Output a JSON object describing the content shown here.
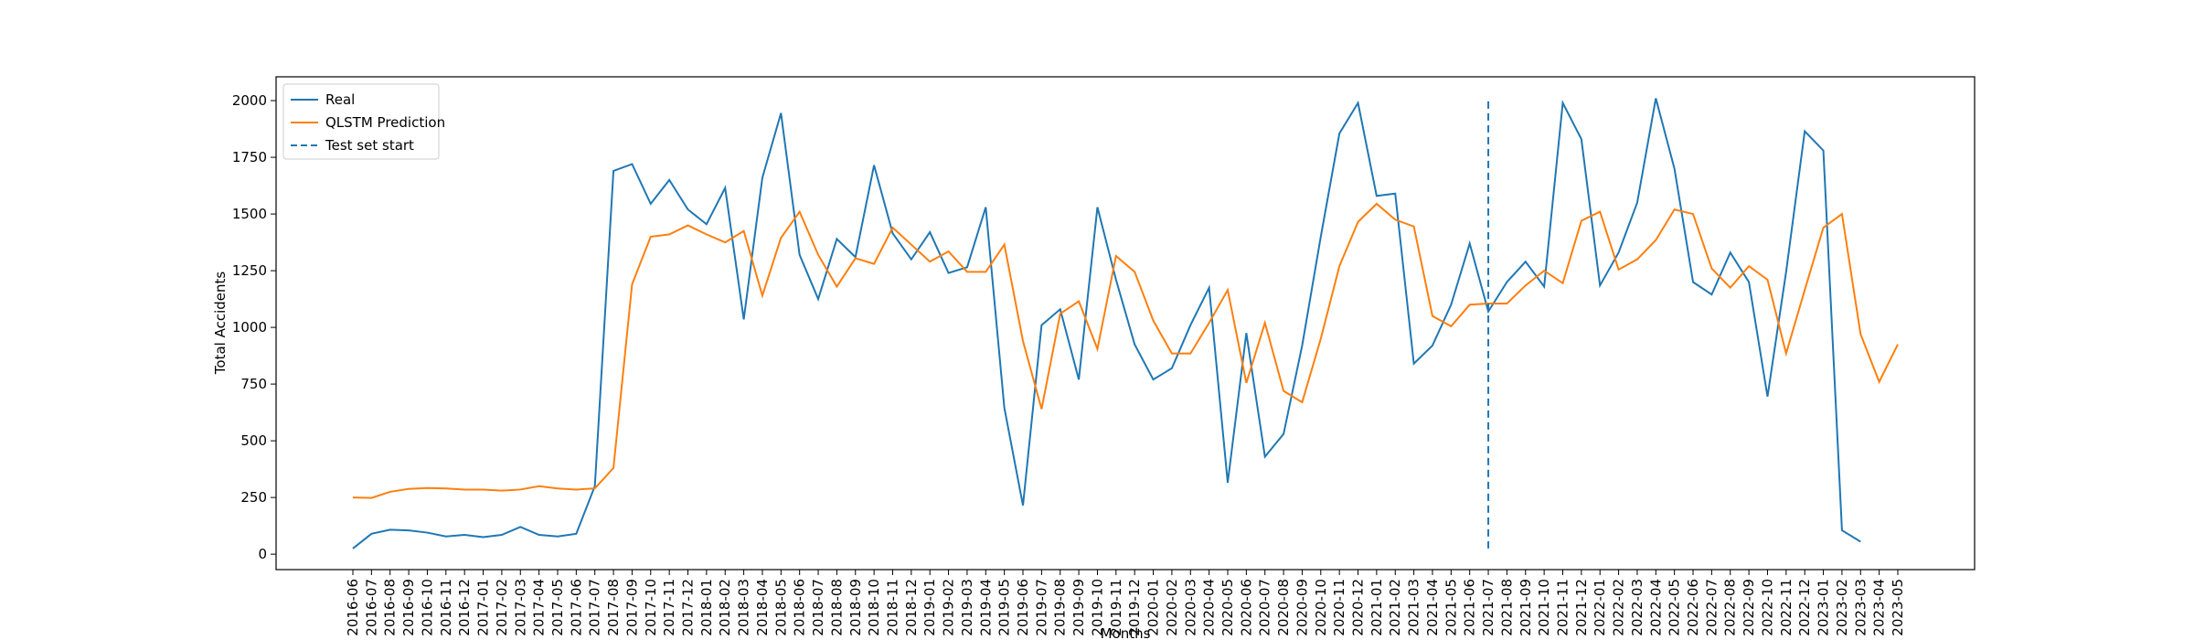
{
  "chart_data": {
    "type": "line",
    "xlabel": "Months",
    "ylabel": "Total Accidents",
    "x": [
      "2016-06",
      "2016-07",
      "2016-08",
      "2016-09",
      "2016-10",
      "2016-11",
      "2016-12",
      "2017-01",
      "2017-02",
      "2017-03",
      "2017-04",
      "2017-05",
      "2017-06",
      "2017-07",
      "2017-08",
      "2017-09",
      "2017-10",
      "2017-11",
      "2017-12",
      "2018-01",
      "2018-02",
      "2018-03",
      "2018-04",
      "2018-05",
      "2018-06",
      "2018-07",
      "2018-08",
      "2018-09",
      "2018-10",
      "2018-11",
      "2018-12",
      "2019-01",
      "2019-02",
      "2019-03",
      "2019-04",
      "2019-05",
      "2019-06",
      "2019-07",
      "2019-08",
      "2019-09",
      "2019-10",
      "2019-11",
      "2019-12",
      "2020-01",
      "2020-02",
      "2020-03",
      "2020-04",
      "2020-05",
      "2020-06",
      "2020-07",
      "2020-08",
      "2020-09",
      "2020-10",
      "2020-11",
      "2020-12",
      "2021-01",
      "2021-02",
      "2021-03",
      "2021-04",
      "2021-05",
      "2021-06",
      "2021-07",
      "2021-08",
      "2021-09",
      "2021-10",
      "2021-11",
      "2021-12",
      "2022-01",
      "2022-02",
      "2022-03",
      "2022-04",
      "2022-05",
      "2022-06",
      "2022-07",
      "2022-08",
      "2022-09",
      "2022-10",
      "2022-11",
      "2022-12",
      "2023-01",
      "2023-02",
      "2023-03",
      "2023-04",
      "2023-05"
    ],
    "series": [
      {
        "name": "Real",
        "color": "#1f77b4",
        "values": [
          25,
          90,
          108,
          105,
          95,
          78,
          85,
          75,
          85,
          120,
          85,
          78,
          90,
          300,
          1690,
          1720,
          1545,
          1650,
          1520,
          1455,
          1615,
          1035,
          1660,
          1945,
          1320,
          1125,
          1390,
          1310,
          1715,
          1415,
          1300,
          1420,
          1240,
          1265,
          1530,
          645,
          215,
          1010,
          1080,
          770,
          1530,
          1210,
          925,
          770,
          820,
          1010,
          1175,
          315,
          975,
          430,
          530,
          920,
          1400,
          1855,
          1990,
          1580,
          1590,
          840,
          920,
          1100,
          1370,
          1070,
          1200,
          1290,
          1180,
          1990,
          1830,
          1185,
          1330,
          1550,
          2010,
          1700,
          1200,
          1145,
          1330,
          1200,
          695,
          1245,
          1865,
          1780,
          105,
          55,
          null,
          null
        ]
      },
      {
        "name": "QLSTM Prediction",
        "color": "#ff7f0e",
        "values": [
          250,
          248,
          275,
          288,
          292,
          290,
          285,
          285,
          280,
          285,
          300,
          290,
          285,
          290,
          380,
          1190,
          1400,
          1410,
          1450,
          1410,
          1375,
          1425,
          1140,
          1395,
          1510,
          1320,
          1180,
          1305,
          1280,
          1440,
          1365,
          1290,
          1335,
          1245,
          1245,
          1365,
          940,
          640,
          1060,
          1115,
          905,
          1315,
          1245,
          1030,
          885,
          885,
          1020,
          1165,
          755,
          1020,
          720,
          670,
          950,
          1270,
          1465,
          1545,
          1475,
          1445,
          1050,
          1005,
          1100,
          1105,
          1105,
          1185,
          1250,
          1195,
          1470,
          1510,
          1255,
          1300,
          1385,
          1520,
          1500,
          1260,
          1175,
          1270,
          1210,
          885,
          1165,
          1440,
          1500,
          970,
          760,
          925
        ]
      }
    ],
    "vline": {
      "name": "Test set start",
      "x": "2021-07",
      "ymin": 25,
      "ymax": 2010,
      "color": "#1f77b4",
      "style": "dashed"
    },
    "ylim": [
      -68,
      2105
    ],
    "yticks": [
      0,
      250,
      500,
      750,
      1000,
      1250,
      1500,
      1750,
      2000
    ],
    "legend": "upper left"
  }
}
